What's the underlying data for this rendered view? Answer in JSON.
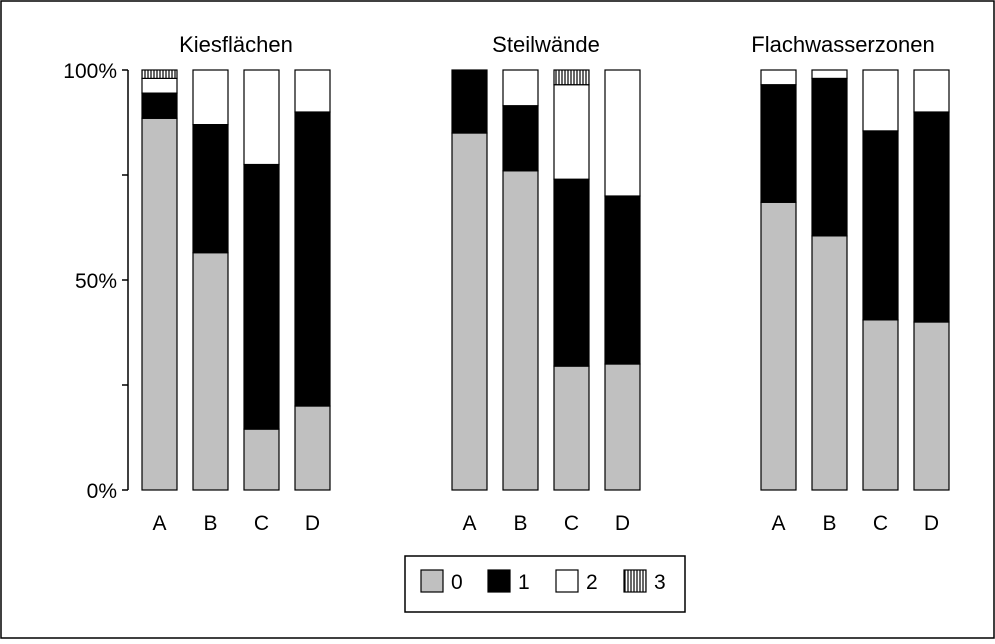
{
  "chart_data": {
    "type": "bar",
    "stacked": "percent",
    "yticks": [
      "0%",
      "50%",
      "100%"
    ],
    "ylim": [
      0,
      100
    ],
    "groups": [
      {
        "title": "Kiesflächen",
        "categories": [
          "A",
          "B",
          "C",
          "D"
        ],
        "stacks": [
          {
            "0": 88.5,
            "1": 6,
            "2": 3.5,
            "3": 2
          },
          {
            "0": 56.5,
            "1": 30.5,
            "2": 13,
            "3": 0
          },
          {
            "0": 14.5,
            "1": 63,
            "2": 22.5,
            "3": 0
          },
          {
            "0": 20,
            "1": 70,
            "2": 10,
            "3": 0
          }
        ]
      },
      {
        "title": "Steilwände",
        "categories": [
          "A",
          "B",
          "C",
          "D"
        ],
        "stacks": [
          {
            "0": 85,
            "1": 15,
            "2": 0,
            "3": 0
          },
          {
            "0": 76,
            "1": 15.5,
            "2": 8.5,
            "3": 0
          },
          {
            "0": 29.5,
            "1": 44.5,
            "2": 22.5,
            "3": 3.5
          },
          {
            "0": 30,
            "1": 40,
            "2": 30,
            "3": 0
          }
        ]
      },
      {
        "title": "Flachwasserzonen",
        "categories": [
          "A",
          "B",
          "C",
          "D"
        ],
        "stacks": [
          {
            "0": 68.5,
            "1": 28,
            "2": 3.5,
            "3": 0
          },
          {
            "0": 60.5,
            "1": 37.5,
            "2": 2,
            "3": 0
          },
          {
            "0": 40.5,
            "1": 45,
            "2": 14.5,
            "3": 0
          },
          {
            "0": 40,
            "1": 50,
            "2": 10,
            "3": 0
          }
        ]
      }
    ],
    "series": [
      {
        "name": "0",
        "color": "#c0c0c0",
        "pattern": "solid"
      },
      {
        "name": "1",
        "color": "#000000",
        "pattern": "solid"
      },
      {
        "name": "2",
        "color": "#ffffff",
        "pattern": "solid"
      },
      {
        "name": "3",
        "color": "#ffffff",
        "pattern": "vertical-hatch"
      }
    ],
    "legend": "bottom-center",
    "grid": false
  }
}
